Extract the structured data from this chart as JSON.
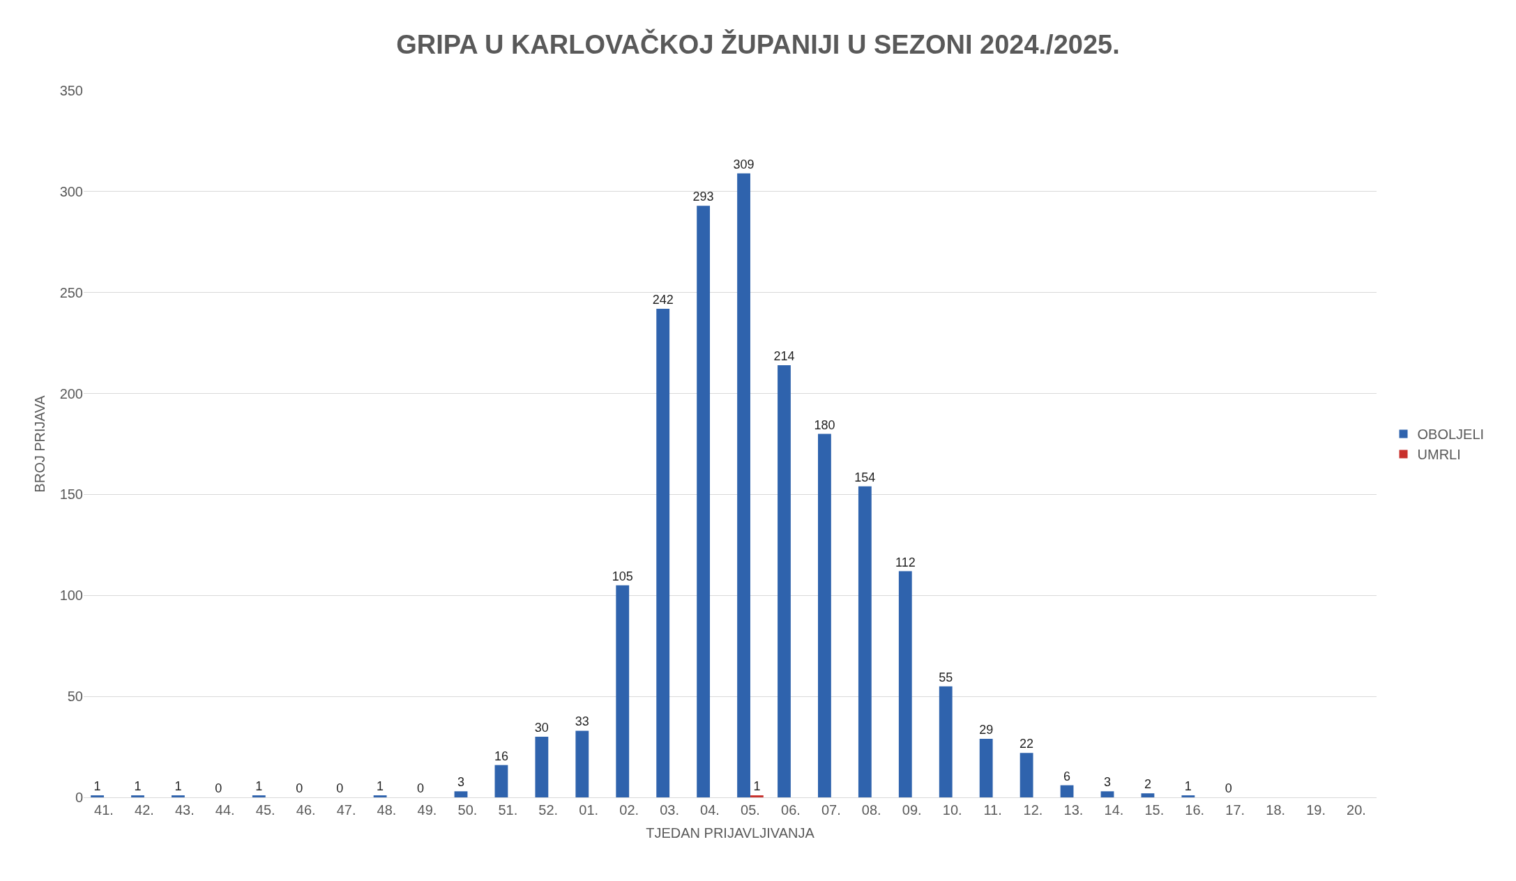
{
  "chart_data": {
    "type": "bar",
    "title": "GRIPA U KARLOVAČKOJ ŽUPANIJI U SEZONI 2024./2025.",
    "xlabel": "TJEDAN PRIJAVLJIVANJA",
    "ylabel": "BROJ PRIJAVA",
    "categories": [
      "41.",
      "42.",
      "43.",
      "44.",
      "45.",
      "46.",
      "47.",
      "48.",
      "49.",
      "50.",
      "51.",
      "52.",
      "01.",
      "02.",
      "03.",
      "04.",
      "05.",
      "06.",
      "07.",
      "08.",
      "09.",
      "10.",
      "11.",
      "12.",
      "13.",
      "14.",
      "15.",
      "16.",
      "17.",
      "18.",
      "19.",
      "20."
    ],
    "series": [
      {
        "name": "OBOLJELI",
        "color": "#2f63ad",
        "values": [
          1,
          1,
          1,
          0,
          1,
          0,
          0,
          1,
          0,
          3,
          16,
          30,
          33,
          105,
          242,
          293,
          309,
          214,
          180,
          154,
          112,
          55,
          29,
          22,
          6,
          3,
          2,
          1,
          0,
          null,
          null,
          null
        ]
      },
      {
        "name": "UMRLI",
        "color": "#c8302c",
        "values": [
          null,
          null,
          null,
          null,
          null,
          null,
          null,
          null,
          null,
          null,
          null,
          null,
          null,
          null,
          null,
          null,
          1,
          null,
          null,
          null,
          null,
          null,
          null,
          null,
          null,
          null,
          null,
          null,
          null,
          null,
          null,
          null
        ]
      }
    ],
    "ylim": [
      0,
      350
    ],
    "yticks": [
      0,
      50,
      100,
      150,
      200,
      250,
      300,
      350
    ],
    "grid": "y",
    "legend": "right",
    "data_labels": true
  }
}
